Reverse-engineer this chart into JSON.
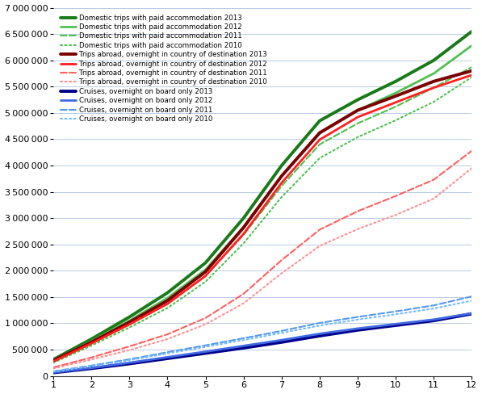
{
  "xlim": [
    1,
    12
  ],
  "ylim": [
    0,
    7000000
  ],
  "yticks": [
    0,
    500000,
    1000000,
    1500000,
    2000000,
    2500000,
    3000000,
    3500000,
    4000000,
    4500000,
    5000000,
    5500000,
    6000000,
    6500000,
    7000000
  ],
  "xticks": [
    1,
    2,
    3,
    4,
    5,
    6,
    7,
    8,
    9,
    10,
    11,
    12
  ],
  "series": [
    {
      "label": "Domestic trips with paid accommodation 2013",
      "color": "#1a7a1a",
      "linewidth": 2.8,
      "linestyle": "solid",
      "data": [
        310000,
        700000,
        1120000,
        1580000,
        2150000,
        3000000,
        4000000,
        4850000,
        5250000,
        5600000,
        6000000,
        6550000
      ]
    },
    {
      "label": "Domestic trips with paid accommodation 2012",
      "color": "#50c050",
      "linewidth": 2.0,
      "linestyle": "solid",
      "data": [
        290000,
        660000,
        1050000,
        1480000,
        2020000,
        2830000,
        3800000,
        4630000,
        5050000,
        5380000,
        5750000,
        6280000
      ]
    },
    {
      "label": "Domestic trips with paid accommodation 2011",
      "color": "#50c050",
      "linewidth": 1.5,
      "linestyle": "dashed",
      "data": [
        265000,
        610000,
        970000,
        1370000,
        1900000,
        2680000,
        3610000,
        4400000,
        4800000,
        5120000,
        5480000,
        5870000
      ]
    },
    {
      "label": "Domestic trips with paid accommodation 2010",
      "color": "#50c050",
      "linewidth": 1.5,
      "linestyle": "dotted",
      "data": [
        250000,
        575000,
        920000,
        1290000,
        1790000,
        2520000,
        3400000,
        4140000,
        4540000,
        4860000,
        5210000,
        5680000
      ]
    },
    {
      "label": "Trips abroad, overnight in country of destination 2013",
      "color": "#7b0000",
      "linewidth": 2.8,
      "linestyle": "solid",
      "data": [
        290000,
        640000,
        1020000,
        1430000,
        1980000,
        2820000,
        3800000,
        4620000,
        5050000,
        5320000,
        5600000,
        5800000
      ]
    },
    {
      "label": "Trips abroad, overnight in country of destination 2012",
      "color": "#ff2020",
      "linewidth": 2.0,
      "linestyle": "solid",
      "data": [
        275000,
        615000,
        980000,
        1370000,
        1900000,
        2700000,
        3670000,
        4490000,
        4920000,
        5200000,
        5480000,
        5720000
      ]
    },
    {
      "label": "Trips abroad, overnight in country of destination 2011",
      "color": "#ff6060",
      "linewidth": 1.5,
      "linestyle": "dashed",
      "data": [
        160000,
        350000,
        560000,
        790000,
        1100000,
        1560000,
        2200000,
        2780000,
        3130000,
        3420000,
        3730000,
        4280000
      ]
    },
    {
      "label": "Trips abroad, overnight in country of destination 2010",
      "color": "#ff9090",
      "linewidth": 1.5,
      "linestyle": "dotted",
      "data": [
        140000,
        310000,
        490000,
        700000,
        980000,
        1380000,
        1950000,
        2470000,
        2790000,
        3060000,
        3370000,
        3950000
      ]
    },
    {
      "label": "Cruises, overnight on board only 2013",
      "color": "#00008b",
      "linewidth": 2.8,
      "linestyle": "solid",
      "data": [
        60000,
        140000,
        230000,
        330000,
        430000,
        530000,
        640000,
        760000,
        870000,
        960000,
        1050000,
        1180000
      ]
    },
    {
      "label": "Cruises, overnight on board only 2012",
      "color": "#4169e1",
      "linewidth": 2.0,
      "linestyle": "solid",
      "data": [
        65000,
        150000,
        250000,
        355000,
        460000,
        570000,
        680000,
        800000,
        900000,
        985000,
        1070000,
        1190000
      ]
    },
    {
      "label": "Cruises, overnight on board only 2011",
      "color": "#5599ee",
      "linewidth": 1.5,
      "linestyle": "dashed",
      "data": [
        85000,
        195000,
        315000,
        450000,
        580000,
        715000,
        855000,
        1005000,
        1120000,
        1225000,
        1340000,
        1510000
      ]
    },
    {
      "label": "Cruises, overnight on board only 2010",
      "color": "#77bbff",
      "linewidth": 1.5,
      "linestyle": "dotted",
      "data": [
        80000,
        183000,
        297000,
        425000,
        550000,
        680000,
        815000,
        955000,
        1070000,
        1170000,
        1280000,
        1430000
      ]
    }
  ]
}
